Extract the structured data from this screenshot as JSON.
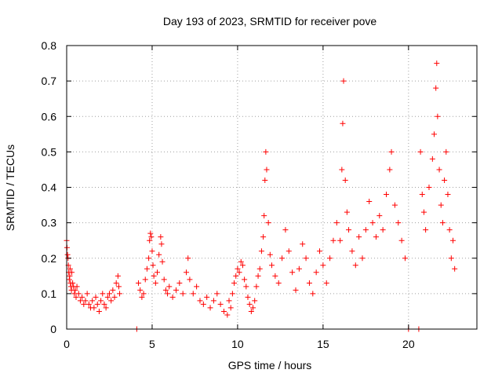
{
  "chart_data": {
    "type": "scatter",
    "title": "Day 193 of 2023, SRMTID for receiver pove",
    "xlabel": "GPS time / hours",
    "ylabel": "SRMTID / TECUs",
    "xlim": [
      0,
      24
    ],
    "ylim": [
      0,
      0.8
    ],
    "x_ticks": [
      0,
      5,
      10,
      15,
      20
    ],
    "x_tick_labels": [
      "0",
      "5",
      "10",
      "15",
      "20"
    ],
    "y_ticks": [
      0,
      0.1,
      0.2,
      0.3,
      0.4,
      0.5,
      0.6,
      0.7,
      0.8
    ],
    "y_tick_labels": [
      "0",
      "0.1",
      "0.2",
      "0.3",
      "0.4",
      "0.5",
      "0.6",
      "0.7",
      "0.8"
    ],
    "grid": true,
    "marker": "+",
    "color": "#ff0000",
    "series": [
      {
        "name": "SRMTID",
        "points": [
          [
            0.0,
            0.25
          ],
          [
            0.02,
            0.23
          ],
          [
            0.05,
            0.21
          ],
          [
            0.08,
            0.2
          ],
          [
            0.1,
            0.18
          ],
          [
            0.12,
            0.16
          ],
          [
            0.15,
            0.14
          ],
          [
            0.18,
            0.15
          ],
          [
            0.2,
            0.17
          ],
          [
            0.22,
            0.13
          ],
          [
            0.25,
            0.12
          ],
          [
            0.28,
            0.11
          ],
          [
            0.3,
            0.16
          ],
          [
            0.35,
            0.13
          ],
          [
            0.4,
            0.12
          ],
          [
            0.45,
            0.1
          ],
          [
            0.5,
            0.11
          ],
          [
            0.55,
            0.09
          ],
          [
            0.6,
            0.12
          ],
          [
            0.7,
            0.1
          ],
          [
            0.8,
            0.08
          ],
          [
            0.9,
            0.09
          ],
          [
            1.0,
            0.07
          ],
          [
            1.1,
            0.08
          ],
          [
            1.2,
            0.1
          ],
          [
            1.3,
            0.07
          ],
          [
            1.4,
            0.06
          ],
          [
            1.5,
            0.08
          ],
          [
            1.6,
            0.06
          ],
          [
            1.7,
            0.09
          ],
          [
            1.8,
            0.07
          ],
          [
            1.9,
            0.05
          ],
          [
            2.0,
            0.08
          ],
          [
            2.1,
            0.1
          ],
          [
            2.2,
            0.07
          ],
          [
            2.3,
            0.06
          ],
          [
            2.4,
            0.09
          ],
          [
            2.5,
            0.1
          ],
          [
            2.6,
            0.08
          ],
          [
            2.7,
            0.11
          ],
          [
            2.8,
            0.09
          ],
          [
            2.9,
            0.13
          ],
          [
            3.0,
            0.15
          ],
          [
            3.05,
            0.12
          ],
          [
            3.1,
            0.1
          ],
          [
            4.1,
            0.0
          ],
          [
            4.2,
            0.13
          ],
          [
            4.3,
            0.11
          ],
          [
            4.4,
            0.09
          ],
          [
            4.5,
            0.1
          ],
          [
            4.6,
            0.14
          ],
          [
            4.7,
            0.17
          ],
          [
            4.8,
            0.2
          ],
          [
            4.85,
            0.25
          ],
          [
            4.9,
            0.27
          ],
          [
            4.95,
            0.26
          ],
          [
            5.0,
            0.22
          ],
          [
            5.05,
            0.18
          ],
          [
            5.1,
            0.15
          ],
          [
            5.2,
            0.13
          ],
          [
            5.3,
            0.16
          ],
          [
            5.4,
            0.21
          ],
          [
            5.5,
            0.26
          ],
          [
            5.55,
            0.24
          ],
          [
            5.6,
            0.19
          ],
          [
            5.7,
            0.14
          ],
          [
            5.8,
            0.11
          ],
          [
            5.9,
            0.1
          ],
          [
            6.0,
            0.12
          ],
          [
            6.2,
            0.09
          ],
          [
            6.4,
            0.11
          ],
          [
            6.6,
            0.13
          ],
          [
            6.8,
            0.1
          ],
          [
            7.0,
            0.16
          ],
          [
            7.1,
            0.2
          ],
          [
            7.2,
            0.14
          ],
          [
            7.4,
            0.1
          ],
          [
            7.6,
            0.12
          ],
          [
            7.8,
            0.08
          ],
          [
            8.0,
            0.07
          ],
          [
            8.2,
            0.09
          ],
          [
            8.4,
            0.06
          ],
          [
            8.6,
            0.08
          ],
          [
            8.8,
            0.1
          ],
          [
            9.0,
            0.07
          ],
          [
            9.2,
            0.05
          ],
          [
            9.4,
            0.04
          ],
          [
            9.5,
            0.08
          ],
          [
            9.6,
            0.06
          ],
          [
            9.7,
            0.1
          ],
          [
            9.8,
            0.13
          ],
          [
            9.9,
            0.15
          ],
          [
            10.0,
            0.17
          ],
          [
            10.1,
            0.16
          ],
          [
            10.2,
            0.19
          ],
          [
            10.3,
            0.18
          ],
          [
            10.4,
            0.14
          ],
          [
            10.5,
            0.12
          ],
          [
            10.6,
            0.09
          ],
          [
            10.7,
            0.07
          ],
          [
            10.8,
            0.05
          ],
          [
            10.9,
            0.06
          ],
          [
            11.0,
            0.08
          ],
          [
            11.1,
            0.12
          ],
          [
            11.2,
            0.15
          ],
          [
            11.3,
            0.17
          ],
          [
            11.4,
            0.22
          ],
          [
            11.5,
            0.26
          ],
          [
            11.55,
            0.32
          ],
          [
            11.6,
            0.42
          ],
          [
            11.65,
            0.5
          ],
          [
            11.7,
            0.45
          ],
          [
            11.8,
            0.3
          ],
          [
            11.9,
            0.21
          ],
          [
            12.0,
            0.18
          ],
          [
            12.2,
            0.15
          ],
          [
            12.4,
            0.13
          ],
          [
            12.6,
            0.2
          ],
          [
            12.8,
            0.28
          ],
          [
            13.0,
            0.22
          ],
          [
            13.2,
            0.16
          ],
          [
            13.4,
            0.11
          ],
          [
            13.6,
            0.17
          ],
          [
            13.8,
            0.24
          ],
          [
            14.0,
            0.2
          ],
          [
            14.2,
            0.13
          ],
          [
            14.4,
            0.1
          ],
          [
            14.6,
            0.16
          ],
          [
            14.8,
            0.22
          ],
          [
            15.0,
            0.18
          ],
          [
            15.2,
            0.13
          ],
          [
            15.4,
            0.2
          ],
          [
            15.6,
            0.25
          ],
          [
            15.8,
            0.3
          ],
          [
            16.0,
            0.25
          ],
          [
            16.1,
            0.45
          ],
          [
            16.15,
            0.58
          ],
          [
            16.2,
            0.7
          ],
          [
            16.3,
            0.42
          ],
          [
            16.4,
            0.33
          ],
          [
            16.5,
            0.28
          ],
          [
            16.7,
            0.22
          ],
          [
            16.9,
            0.18
          ],
          [
            17.1,
            0.26
          ],
          [
            17.3,
            0.2
          ],
          [
            17.5,
            0.28
          ],
          [
            17.7,
            0.36
          ],
          [
            17.9,
            0.3
          ],
          [
            18.1,
            0.26
          ],
          [
            18.3,
            0.32
          ],
          [
            18.5,
            0.28
          ],
          [
            18.7,
            0.38
          ],
          [
            18.9,
            0.45
          ],
          [
            19.0,
            0.5
          ],
          [
            19.2,
            0.35
          ],
          [
            19.4,
            0.3
          ],
          [
            19.6,
            0.25
          ],
          [
            19.8,
            0.2
          ],
          [
            20.0,
            0.0
          ],
          [
            20.6,
            0.0
          ],
          [
            20.7,
            0.5
          ],
          [
            20.8,
            0.38
          ],
          [
            20.9,
            0.33
          ],
          [
            21.0,
            0.28
          ],
          [
            21.2,
            0.4
          ],
          [
            21.4,
            0.48
          ],
          [
            21.5,
            0.55
          ],
          [
            21.6,
            0.68
          ],
          [
            21.65,
            0.75
          ],
          [
            21.7,
            0.6
          ],
          [
            21.8,
            0.45
          ],
          [
            21.9,
            0.35
          ],
          [
            22.0,
            0.3
          ],
          [
            22.1,
            0.42
          ],
          [
            22.2,
            0.5
          ],
          [
            22.3,
            0.38
          ],
          [
            22.4,
            0.28
          ],
          [
            22.5,
            0.2
          ],
          [
            22.6,
            0.25
          ],
          [
            22.7,
            0.17
          ]
        ]
      }
    ]
  }
}
